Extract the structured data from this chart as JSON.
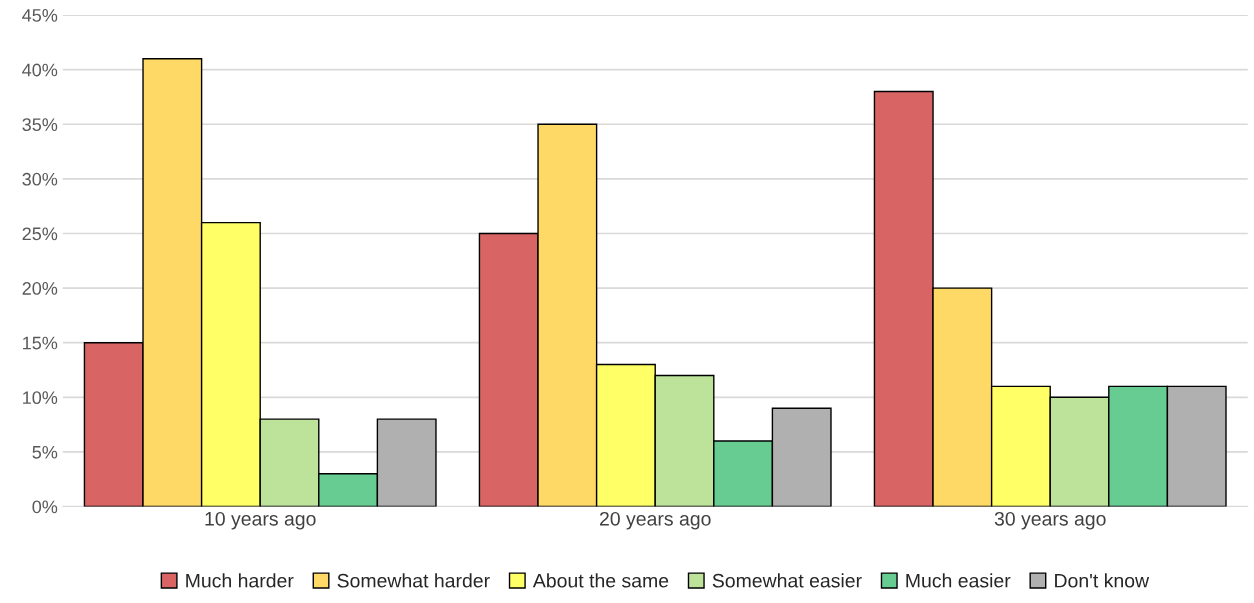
{
  "chart_data": {
    "type": "bar",
    "categories": [
      "10 years ago",
      "20 years ago",
      "30 years ago"
    ],
    "series": [
      {
        "name": "Much harder",
        "color": "#d96464",
        "values": [
          15,
          25,
          38
        ]
      },
      {
        "name": "Somewhat harder",
        "color": "#ffd966",
        "values": [
          41,
          35,
          20
        ]
      },
      {
        "name": "About the same",
        "color": "#ffff66",
        "values": [
          26,
          13,
          11
        ]
      },
      {
        "name": "Somewhat easier",
        "color": "#bde29a",
        "values": [
          8,
          12,
          10
        ]
      },
      {
        "name": "Much easier",
        "color": "#66cc92",
        "values": [
          3,
          6,
          11
        ]
      },
      {
        "name": "Don't know",
        "color": "#b0b0b0",
        "values": [
          8,
          9,
          11
        ]
      }
    ],
    "ylim": [
      0,
      45
    ],
    "yticks": [
      {
        "value": 0,
        "label": "0%"
      },
      {
        "value": 5,
        "label": "5%"
      },
      {
        "value": 10,
        "label": "10%"
      },
      {
        "value": 15,
        "label": "15%"
      },
      {
        "value": 20,
        "label": "20%"
      },
      {
        "value": 25,
        "label": "25%"
      },
      {
        "value": 30,
        "label": "30%"
      },
      {
        "value": 35,
        "label": "35%"
      },
      {
        "value": 40,
        "label": "40%"
      },
      {
        "value": 45,
        "label": "45%"
      }
    ],
    "grid": "y",
    "legend": "bottom"
  }
}
